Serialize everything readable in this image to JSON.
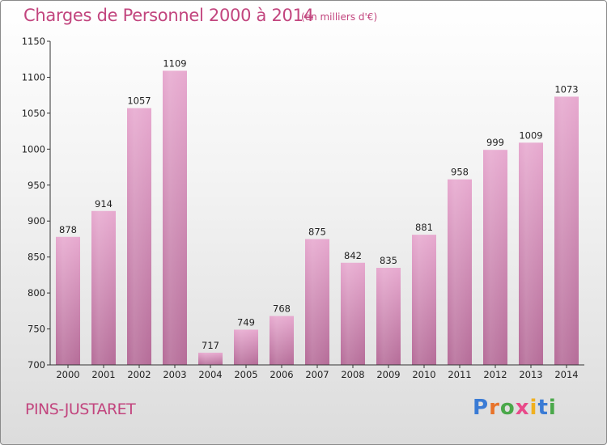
{
  "title": "Charges de Personnel 2000 à 2014",
  "subtitle": "(en milliers d'€)",
  "commune": "PINS-JUSTARET",
  "logo": {
    "text": "Proxiti",
    "letter_colors": [
      "#3a7bd5",
      "#e8732a",
      "#4aa84a",
      "#e84a8a",
      "#f0b020",
      "#3a7bd5",
      "#4aa84a"
    ]
  },
  "colors": {
    "bar_top": "#e7a9cf",
    "bar_bottom": "#b56c98",
    "title": "#c2457e",
    "axis": "#333333"
  },
  "chart_data": {
    "type": "bar",
    "title": "Charges de Personnel 2000 à 2014",
    "subtitle": "(en milliers d'€)",
    "categories": [
      "2000",
      "2001",
      "2002",
      "2003",
      "2004",
      "2005",
      "2006",
      "2007",
      "2008",
      "2009",
      "2010",
      "2011",
      "2012",
      "2013",
      "2014"
    ],
    "values": [
      878,
      914,
      1057,
      1109,
      717,
      749,
      768,
      875,
      842,
      835,
      881,
      958,
      999,
      1009,
      1073
    ],
    "ylim": [
      700,
      1150
    ],
    "yticks": [
      700,
      750,
      800,
      850,
      900,
      950,
      1000,
      1050,
      1100,
      1150
    ],
    "grid": false,
    "legend": "none"
  }
}
